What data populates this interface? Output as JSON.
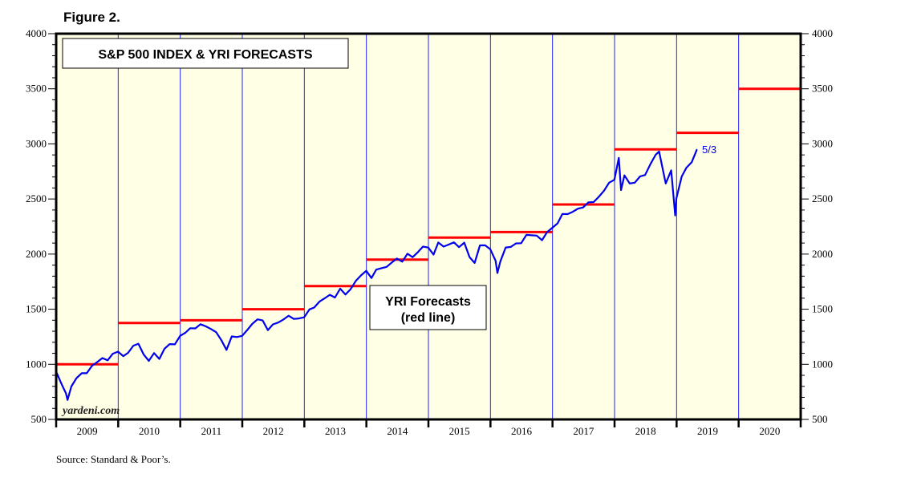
{
  "figure_label": "Figure 2.",
  "source": "Source: Standard & Poor’s.",
  "watermark": "yardeni.com",
  "chart_data": {
    "type": "line",
    "title": "S&P 500 INDEX & YRI FORECASTS",
    "annotation_box": [
      "YRI Forecasts",
      "(red line)"
    ],
    "end_label": "5/3",
    "ylim": [
      500,
      4000
    ],
    "y_ticks": [
      500,
      1000,
      1500,
      2000,
      2500,
      3000,
      3500,
      4000
    ],
    "y_axis": "both sides",
    "x_categories": [
      "2009",
      "2010",
      "2011",
      "2012",
      "2013",
      "2014",
      "2015",
      "2016",
      "2017",
      "2018",
      "2019",
      "2020"
    ],
    "grid": "vertical year dividers",
    "colors": {
      "background": "#ffffe6",
      "index": "#0000ee",
      "forecast": "#ff0000",
      "divider": "#2222ff"
    },
    "forecasts": [
      {
        "year": 2009,
        "value": 1000
      },
      {
        "year": 2010,
        "value": 1375
      },
      {
        "year": 2011,
        "value": 1400
      },
      {
        "year": 2012,
        "value": 1500
      },
      {
        "year": 2013,
        "value": 1710
      },
      {
        "year": 2014,
        "value": 1950
      },
      {
        "year": 2015,
        "value": 2150
      },
      {
        "year": 2016,
        "value": 2200
      },
      {
        "year": 2017,
        "value": 2450
      },
      {
        "year": 2018,
        "value": 2950
      },
      {
        "year": 2019,
        "value": 3100
      },
      {
        "year": 2020,
        "value": 3500
      }
    ],
    "series": [
      {
        "dates": [
          "2009-01-02",
          "2009-01-31",
          "2009-02-28",
          "2009-03-09",
          "2009-03-31",
          "2009-04-30",
          "2009-05-31",
          "2009-06-30",
          "2009-07-31",
          "2009-08-31",
          "2009-09-30",
          "2009-10-31",
          "2009-11-30",
          "2009-12-31",
          "2010-01-31",
          "2010-02-28",
          "2010-03-31",
          "2010-04-30",
          "2010-05-31",
          "2010-06-30",
          "2010-07-31",
          "2010-08-31",
          "2010-09-30",
          "2010-10-31",
          "2010-11-30",
          "2010-12-31",
          "2011-01-31",
          "2011-02-28",
          "2011-03-31",
          "2011-04-30",
          "2011-05-31",
          "2011-06-30",
          "2011-07-31",
          "2011-08-31",
          "2011-09-30",
          "2011-10-31",
          "2011-11-30",
          "2011-12-31",
          "2012-01-31",
          "2012-02-28",
          "2012-03-31",
          "2012-04-30",
          "2012-05-31",
          "2012-06-30",
          "2012-07-31",
          "2012-08-31",
          "2012-09-30",
          "2012-10-31",
          "2012-11-30",
          "2012-12-31",
          "2013-01-31",
          "2013-02-28",
          "2013-03-31",
          "2013-04-30",
          "2013-05-31",
          "2013-06-30",
          "2013-07-31",
          "2013-08-31",
          "2013-09-30",
          "2013-10-31",
          "2013-11-30",
          "2013-12-31",
          "2014-01-31",
          "2014-02-28",
          "2014-03-31",
          "2014-04-30",
          "2014-05-31",
          "2014-06-30",
          "2014-07-31",
          "2014-08-31",
          "2014-09-30",
          "2014-10-31",
          "2014-11-30",
          "2014-12-31",
          "2015-01-31",
          "2015-02-28",
          "2015-03-31",
          "2015-04-30",
          "2015-05-31",
          "2015-06-30",
          "2015-07-31",
          "2015-08-31",
          "2015-09-30",
          "2015-10-31",
          "2015-11-30",
          "2015-12-31",
          "2016-01-31",
          "2016-02-11",
          "2016-02-28",
          "2016-03-31",
          "2016-04-30",
          "2016-05-31",
          "2016-06-30",
          "2016-07-31",
          "2016-08-31",
          "2016-09-30",
          "2016-10-31",
          "2016-11-30",
          "2016-12-31",
          "2017-01-31",
          "2017-02-28",
          "2017-03-31",
          "2017-04-30",
          "2017-05-31",
          "2017-06-30",
          "2017-07-31",
          "2017-08-31",
          "2017-09-30",
          "2017-10-31",
          "2017-11-30",
          "2017-12-31",
          "2018-01-26",
          "2018-02-08",
          "2018-02-28",
          "2018-03-31",
          "2018-04-30",
          "2018-05-31",
          "2018-06-30",
          "2018-07-31",
          "2018-08-31",
          "2018-09-20",
          "2018-10-29",
          "2018-11-30",
          "2018-12-24",
          "2018-12-31",
          "2019-01-31",
          "2019-02-28",
          "2019-03-31",
          "2019-04-30",
          "2019-05-03"
        ],
        "values": [
          931,
          826,
          735,
          677,
          798,
          873,
          919,
          919,
          987,
          1021,
          1057,
          1036,
          1096,
          1115,
          1074,
          1104,
          1169,
          1187,
          1089,
          1031,
          1102,
          1049,
          1141,
          1183,
          1181,
          1258,
          1286,
          1327,
          1326,
          1364,
          1345,
          1321,
          1292,
          1219,
          1131,
          1253,
          1247,
          1258,
          1312,
          1366,
          1408,
          1398,
          1310,
          1362,
          1379,
          1407,
          1441,
          1412,
          1416,
          1426,
          1498,
          1515,
          1569,
          1598,
          1631,
          1606,
          1686,
          1633,
          1682,
          1757,
          1806,
          1848,
          1783,
          1859,
          1872,
          1884,
          1924,
          1960,
          1931,
          2003,
          1972,
          2018,
          2068,
          2059,
          1995,
          2105,
          2068,
          2086,
          2107,
          2063,
          2104,
          1972,
          1920,
          2079,
          2080,
          2044,
          1940,
          1829,
          1932,
          2060,
          2065,
          2097,
          2099,
          2174,
          2171,
          2168,
          2126,
          2199,
          2239,
          2279,
          2364,
          2363,
          2384,
          2412,
          2423,
          2470,
          2472,
          2519,
          2575,
          2648,
          2674,
          2873,
          2581,
          2714,
          2641,
          2648,
          2705,
          2718,
          2816,
          2902,
          2931,
          2641,
          2760,
          2351,
          2507,
          2704,
          2784,
          2834,
          2946,
          2946
        ]
      }
    ]
  }
}
